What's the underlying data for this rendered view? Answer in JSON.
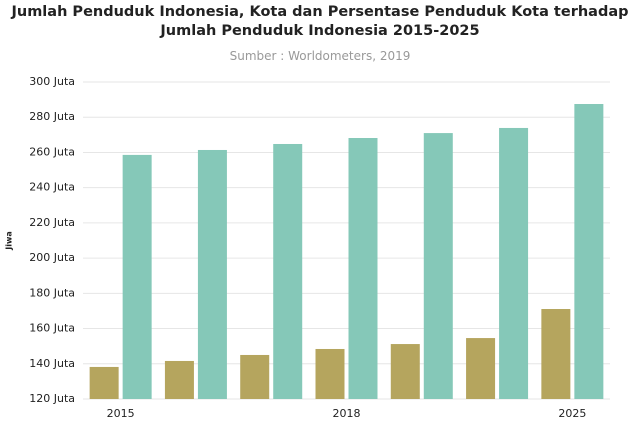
{
  "chart_data": {
    "type": "bar",
    "title": "Jumlah Penduduk Indonesia, Kota dan Persentase Penduduk Kota terhadap Jumlah Penduduk Indonesia 2015-2025",
    "subtitle": "Sumber : Worldometers, 2019",
    "y_label": "Jiwa",
    "categories": [
      "2015",
      null,
      null,
      "2018",
      null,
      null,
      "2025"
    ],
    "series": [
      {
        "color": "#b5a55e",
        "values": [
          138.2,
          141.6,
          145,
          148.4,
          151.2,
          154.6,
          171.1
        ]
      },
      {
        "color": "#85c8b8",
        "values": [
          258.6,
          261.4,
          264.8,
          268.2,
          271,
          273.9,
          287.5
        ]
      }
    ],
    "ylim": [
      120,
      300
    ],
    "yticks": [
      {
        "value": 120,
        "label": "120 Juta"
      },
      {
        "value": 140,
        "label": "140 Juta"
      },
      {
        "value": 160,
        "label": "160 Juta"
      },
      {
        "value": 180,
        "label": "180 Juta"
      },
      {
        "value": 200,
        "label": "200 Juta"
      },
      {
        "value": 220,
        "label": "220 Juta"
      },
      {
        "value": 240,
        "label": "240 Juta"
      },
      {
        "value": 260,
        "label": "260 Juta"
      },
      {
        "value": 280,
        "label": "280 Juta"
      },
      {
        "value": 300,
        "label": "300 Juta"
      }
    ],
    "grid": true
  }
}
